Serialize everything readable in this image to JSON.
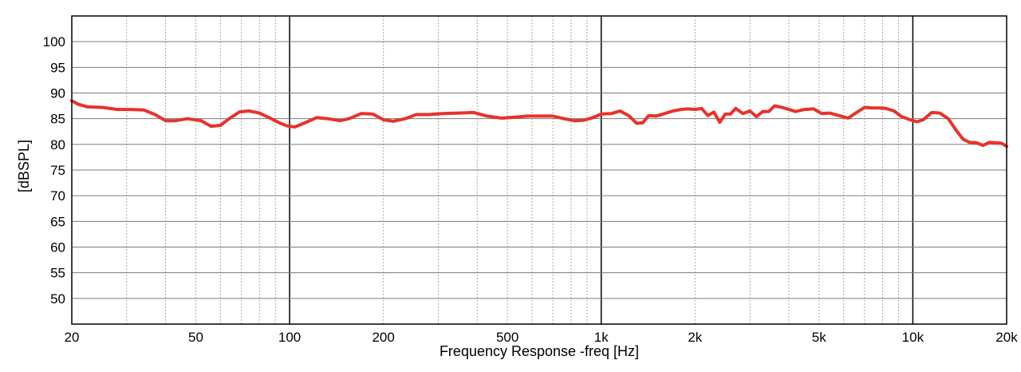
{
  "chart_data": {
    "type": "line",
    "title": "",
    "xlabel": "Frequency Response -freq [Hz]",
    "ylabel": "[dBSPL]",
    "x_scale": "log",
    "xlim": [
      20,
      20000
    ],
    "ylim": [
      45,
      105
    ],
    "grid": true,
    "line_color": "#e8322a",
    "x_ticks": [
      {
        "value": 20,
        "label": "20"
      },
      {
        "value": 50,
        "label": "50"
      },
      {
        "value": 100,
        "label": "100"
      },
      {
        "value": 200,
        "label": "200"
      },
      {
        "value": 500,
        "label": "500"
      },
      {
        "value": 1000,
        "label": "1k"
      },
      {
        "value": 2000,
        "label": "2k"
      },
      {
        "value": 5000,
        "label": "5k"
      },
      {
        "value": 10000,
        "label": "10k"
      },
      {
        "value": 20000,
        "label": "20k"
      }
    ],
    "y_ticks": [
      {
        "value": 50,
        "label": "50"
      },
      {
        "value": 55,
        "label": "55"
      },
      {
        "value": 60,
        "label": "60"
      },
      {
        "value": 65,
        "label": "65"
      },
      {
        "value": 70,
        "label": "70"
      },
      {
        "value": 75,
        "label": "75"
      },
      {
        "value": 80,
        "label": "80"
      },
      {
        "value": 85,
        "label": "85"
      },
      {
        "value": 90,
        "label": "90"
      },
      {
        "value": 95,
        "label": "95"
      },
      {
        "value": 100,
        "label": "100"
      }
    ],
    "series": [
      {
        "x": [
          20,
          21,
          22.5,
          25,
          28,
          31,
          34,
          37,
          40,
          43,
          47,
          52,
          56,
          60,
          64,
          69,
          74,
          80,
          86,
          92,
          98,
          104,
          112,
          122,
          133,
          145,
          155,
          170,
          185,
          200,
          215,
          235,
          255,
          280,
          310,
          350,
          390,
          430,
          480,
          530,
          580,
          640,
          700,
          760,
          820,
          880,
          940,
          1000,
          1080,
          1150,
          1230,
          1300,
          1360,
          1420,
          1500,
          1600,
          1700,
          1800,
          1900,
          2000,
          2100,
          2200,
          2300,
          2400,
          2500,
          2600,
          2700,
          2850,
          3000,
          3150,
          3300,
          3450,
          3600,
          3800,
          4000,
          4200,
          4500,
          4800,
          5100,
          5400,
          5800,
          6200,
          6600,
          7000,
          7400,
          7800,
          8200,
          8700,
          9200,
          9800,
          10300,
          10800,
          11500,
          12200,
          13000,
          13800,
          14500,
          15200,
          16000,
          16800,
          17600,
          18500,
          19300,
          20000
        ],
        "y": [
          88.5,
          87.8,
          87.3,
          87.2,
          86.8,
          86.8,
          86.7,
          85.8,
          84.6,
          84.6,
          85.0,
          84.6,
          83.5,
          83.7,
          85.0,
          86.3,
          86.5,
          86.1,
          85.2,
          84.3,
          83.6,
          83.4,
          84.2,
          85.2,
          85.0,
          84.6,
          85.0,
          86.0,
          85.9,
          84.8,
          84.5,
          85.0,
          85.8,
          85.8,
          86.0,
          86.1,
          86.2,
          85.5,
          85.1,
          85.3,
          85.5,
          85.5,
          85.5,
          85.0,
          84.6,
          84.7,
          85.2,
          85.9,
          86.0,
          86.5,
          85.5,
          84.1,
          84.2,
          85.6,
          85.5,
          86.0,
          86.5,
          86.8,
          86.9,
          86.8,
          87.0,
          85.6,
          86.3,
          84.3,
          85.9,
          85.9,
          87.0,
          86.0,
          86.5,
          85.4,
          86.4,
          86.4,
          87.5,
          87.2,
          86.8,
          86.4,
          86.8,
          86.9,
          86.0,
          86.1,
          85.6,
          85.1,
          86.2,
          87.2,
          87.1,
          87.1,
          87.0,
          86.5,
          85.4,
          84.8,
          84.4,
          84.8,
          86.2,
          86.1,
          85.0,
          82.7,
          81.0,
          80.4,
          80.3,
          79.8,
          80.4,
          80.3,
          80.2,
          79.6
        ]
      }
    ]
  }
}
